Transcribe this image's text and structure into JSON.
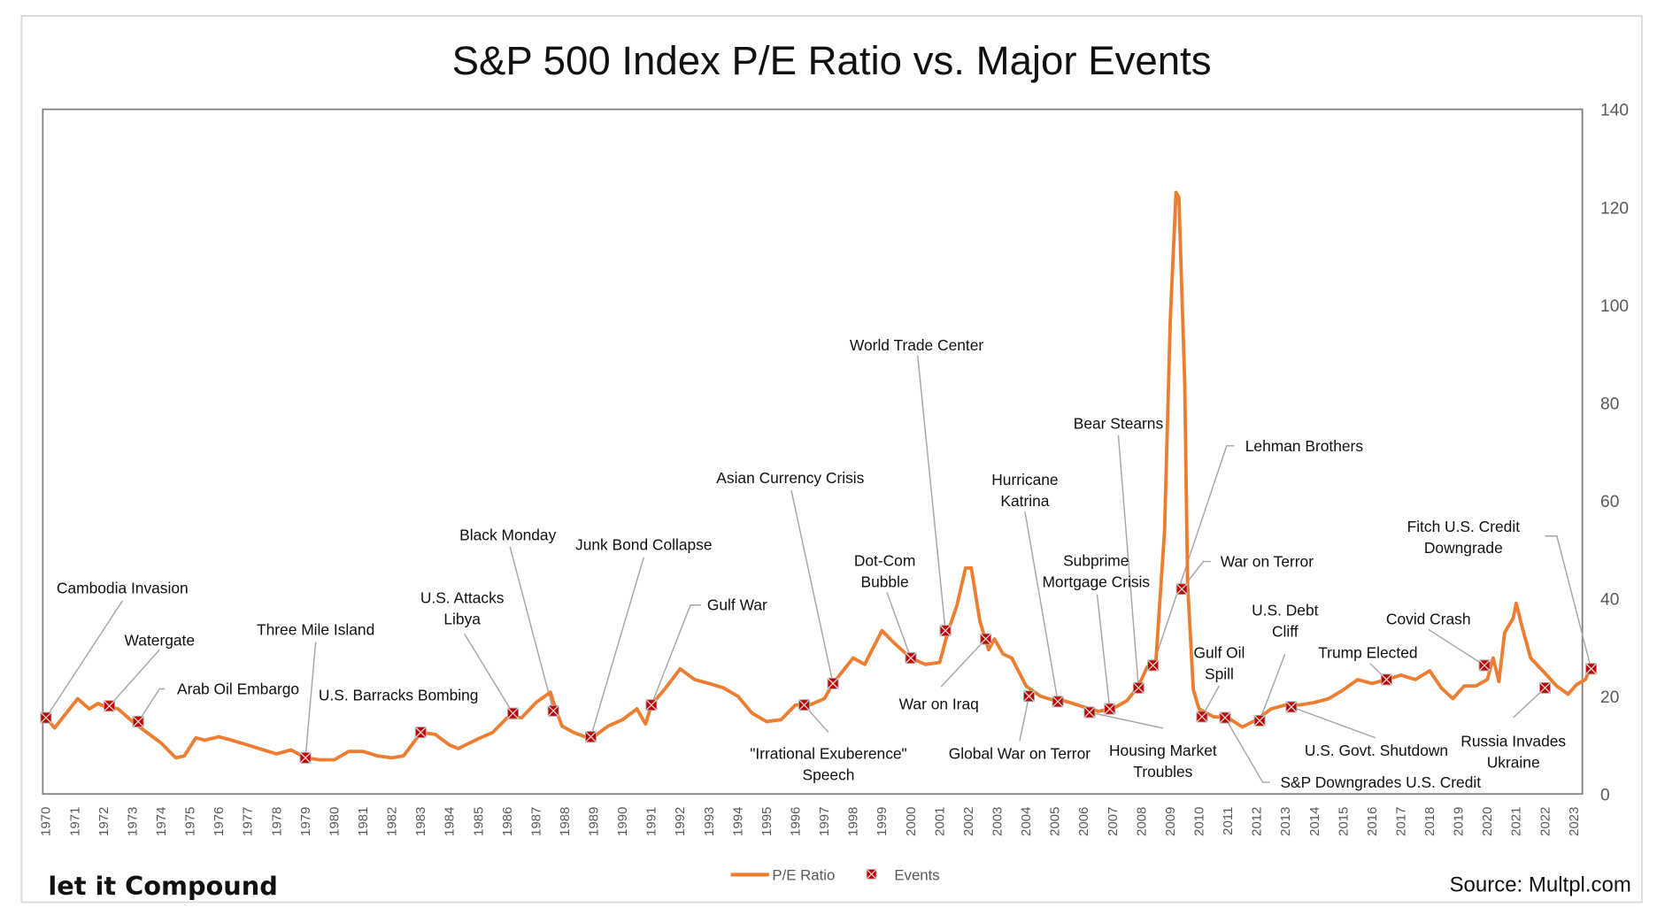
{
  "chart_data": {
    "type": "line",
    "title": "S&P 500 Index P/E Ratio vs. Major Events",
    "ylim": [
      0,
      140
    ],
    "yticks": [
      0,
      20,
      40,
      60,
      80,
      100,
      120,
      140
    ],
    "y_axis_side": "right",
    "xlim": [
      1970,
      2023.6
    ],
    "xtick_labels": [
      "1970",
      "1971",
      "1972",
      "1973",
      "1974",
      "1975",
      "1976",
      "1977",
      "1978",
      "1979",
      "1980",
      "1981",
      "1982",
      "1983",
      "1984",
      "1985",
      "1986",
      "1987",
      "1988",
      "1989",
      "1990",
      "1991",
      "1992",
      "1993",
      "1994",
      "1995",
      "1996",
      "1997",
      "1998",
      "1999",
      "2000",
      "2001",
      "2002",
      "2003",
      "2004",
      "2005",
      "2006",
      "2007",
      "2008",
      "2009",
      "2010",
      "2011",
      "2012",
      "2013",
      "2014",
      "2015",
      "2016",
      "2017",
      "2018",
      "2019",
      "2020",
      "2021",
      "2022",
      "2023"
    ],
    "grid": false,
    "legend": {
      "position": "bottom",
      "entries": [
        "P/E Ratio",
        "Events"
      ]
    },
    "series": [
      {
        "name": "P/E Ratio",
        "color": "#ED7D31",
        "x": [
          1970.0,
          1970.3,
          1970.7,
          1971.1,
          1971.5,
          1971.8,
          1972.0,
          1972.5,
          1973.0,
          1973.5,
          1974.0,
          1974.5,
          1974.8,
          1975.2,
          1975.5,
          1976.0,
          1976.5,
          1977.0,
          1977.5,
          1978.0,
          1978.5,
          1979.0,
          1979.5,
          1980.0,
          1980.5,
          1981.0,
          1981.5,
          1982.0,
          1982.4,
          1982.8,
          1983.0,
          1983.5,
          1984.0,
          1984.3,
          1985.0,
          1985.5,
          1986.0,
          1986.5,
          1987.0,
          1987.5,
          1987.7,
          1987.9,
          1988.3,
          1988.7,
          1989.0,
          1989.5,
          1990.0,
          1990.5,
          1990.8,
          1991.0,
          1991.5,
          1992.0,
          1992.5,
          1993.0,
          1993.5,
          1994.0,
          1994.5,
          1995.0,
          1995.5,
          1996.0,
          1996.5,
          1997.0,
          1997.3,
          1998.0,
          1998.4,
          1999.0,
          1999.4,
          2000.0,
          2000.5,
          2001.0,
          2001.3,
          2001.6,
          2001.9,
          2002.1,
          2002.4,
          2002.7,
          2002.9,
          2003.2,
          2003.5,
          2004.0,
          2004.5,
          2005.0,
          2005.3,
          2006.0,
          2006.5,
          2007.0,
          2007.5,
          2007.9,
          2008.2,
          2008.5,
          2008.8,
          2009.0,
          2009.2,
          2009.3,
          2009.5,
          2009.6,
          2009.8,
          2010.0,
          2010.5,
          2011.0,
          2011.5,
          2012.0,
          2012.5,
          2013.0,
          2013.5,
          2014.0,
          2014.5,
          2015.0,
          2015.5,
          2016.0,
          2016.5,
          2017.0,
          2017.5,
          2018.0,
          2018.4,
          2018.8,
          2019.2,
          2019.6,
          2020.0,
          2020.2,
          2020.4,
          2020.6,
          2020.9,
          2021.0,
          2021.2,
          2021.5,
          2022.0,
          2022.4,
          2022.8,
          2023.1,
          2023.4,
          2023.6
        ],
        "values": [
          15.6,
          13.5,
          16.5,
          19.5,
          17.4,
          18.5,
          18.0,
          17.4,
          14.8,
          12.6,
          10.4,
          7.4,
          7.8,
          11.5,
          11.0,
          11.7,
          10.9,
          10.0,
          9.1,
          8.2,
          9.0,
          7.4,
          7.0,
          7.0,
          8.7,
          8.7,
          7.8,
          7.4,
          7.8,
          10.9,
          12.6,
          12.2,
          10.0,
          9.3,
          11.3,
          12.6,
          15.6,
          15.6,
          18.7,
          20.8,
          17.0,
          13.9,
          12.6,
          11.7,
          11.7,
          13.9,
          15.2,
          17.4,
          14.3,
          18.2,
          21.7,
          25.6,
          23.4,
          22.6,
          21.7,
          20.0,
          16.5,
          14.8,
          15.2,
          18.2,
          18.2,
          19.5,
          22.6,
          27.8,
          26.5,
          33.4,
          31.0,
          27.8,
          26.5,
          26.9,
          33.4,
          38.6,
          46.2,
          46.2,
          35.2,
          29.5,
          31.7,
          28.6,
          27.8,
          22.1,
          20.0,
          19.1,
          19.1,
          17.8,
          16.9,
          17.4,
          19.1,
          22.1,
          26.0,
          27.0,
          53.8,
          97.0,
          123.0,
          122.0,
          84.0,
          43.0,
          21.3,
          17.4,
          15.8,
          15.6,
          13.7,
          15.2,
          17.4,
          18.2,
          18.2,
          18.7,
          19.5,
          21.3,
          23.4,
          22.6,
          23.4,
          24.3,
          23.4,
          25.2,
          21.7,
          19.5,
          22.1,
          22.1,
          23.4,
          27.8,
          23.0,
          33.0,
          36.0,
          39.0,
          34.3,
          27.8,
          24.7,
          22.1,
          20.4,
          22.4,
          23.4,
          26.3
        ]
      },
      {
        "name": "Events",
        "color": "#C00000"
      }
    ],
    "events": [
      {
        "label": [
          "Cambodia Invasion"
        ],
        "x": 1970.0,
        "y": 15.6
      },
      {
        "label": [
          "Watergate"
        ],
        "x": 1972.2,
        "y": 18.0
      },
      {
        "label": [
          "Arab Oil Embargo"
        ],
        "x": 1973.2,
        "y": 14.8
      },
      {
        "label": [
          "Three Mile Island"
        ],
        "x": 1979.0,
        "y": 7.4
      },
      {
        "label": [
          "U.S. Barracks Bombing"
        ],
        "x": 1983.0,
        "y": 12.6
      },
      {
        "label": [
          "U.S. Attacks",
          "Libya"
        ],
        "x": 1986.2,
        "y": 16.5
      },
      {
        "label": [
          "Black Monday"
        ],
        "x": 1987.6,
        "y": 17.0
      },
      {
        "label": [
          "Junk Bond Collapse"
        ],
        "x": 1988.9,
        "y": 11.7
      },
      {
        "label": [
          "Gulf War"
        ],
        "x": 1991.0,
        "y": 18.2
      },
      {
        "label": [
          "Asian Currency Crisis"
        ],
        "x": 1997.3,
        "y": 22.6
      },
      {
        "label": [
          "\"Irrational Exuberence\"",
          "Speech"
        ],
        "x": 1996.3,
        "y": 18.2
      },
      {
        "label": [
          "Dot-Com",
          "Bubble"
        ],
        "x": 2000.0,
        "y": 27.8
      },
      {
        "label": [
          "World Trade Center"
        ],
        "x": 2001.2,
        "y": 33.4
      },
      {
        "label": [
          "War on Iraq"
        ],
        "x": 2002.6,
        "y": 31.7
      },
      {
        "label": [
          "Hurricane",
          "Katrina"
        ],
        "x": 2005.1,
        "y": 18.9
      },
      {
        "label": [
          "Global War on Terror"
        ],
        "x": 2004.1,
        "y": 20.0
      },
      {
        "label": [
          "Housing Market",
          "Troubles"
        ],
        "x": 2006.2,
        "y": 16.7
      },
      {
        "label": [
          "Subprime",
          "Mortgage Crisis"
        ],
        "x": 2006.9,
        "y": 17.4
      },
      {
        "label": [
          "Bear Stearns"
        ],
        "x": 2007.9,
        "y": 21.7
      },
      {
        "label": [
          "Lehman Brothers"
        ],
        "x": 2008.4,
        "y": 26.3
      },
      {
        "label": [
          "War on Terror"
        ],
        "x": 2009.4,
        "y": 41.9
      },
      {
        "label": [
          "Gulf Oil",
          "Spill"
        ],
        "x": 2010.1,
        "y": 15.8
      },
      {
        "label": [
          "S&P Downgrades U.S. Credit"
        ],
        "x": 2010.9,
        "y": 15.6
      },
      {
        "label": [
          "U.S. Debt",
          "Cliff"
        ],
        "x": 2012.1,
        "y": 15.0
      },
      {
        "label": [
          "U.S. Govt. Shutdown"
        ],
        "x": 2013.2,
        "y": 17.8
      },
      {
        "label": [
          "Trump Elected"
        ],
        "x": 2016.5,
        "y": 23.4
      },
      {
        "label": [
          "Covid Crash"
        ],
        "x": 2019.9,
        "y": 26.3
      },
      {
        "label": [
          "Russia Invades",
          "Ukraine"
        ],
        "x": 2022.0,
        "y": 21.7
      },
      {
        "label": [
          "Fitch U.S. Credit",
          "Downgrade"
        ],
        "x": 2023.6,
        "y": 25.6
      }
    ]
  },
  "branding": {
    "logo_text": "let it Compound",
    "source": "Source: Multpl.com"
  }
}
